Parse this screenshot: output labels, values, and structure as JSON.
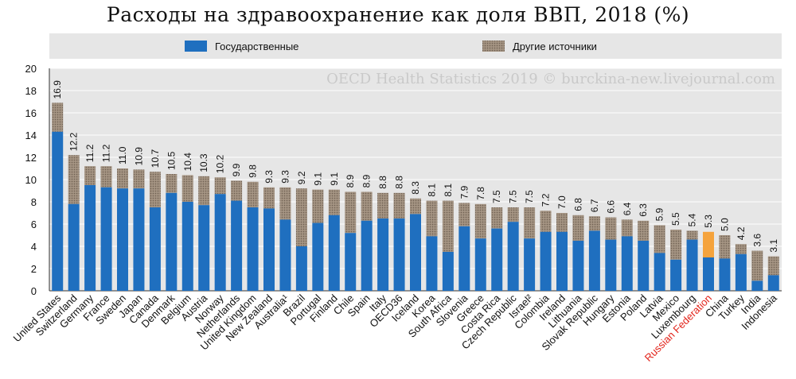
{
  "title": "Расходы на здравоохранение как доля ВВП, 2018 (%)",
  "watermark": "OECD Health Statistics 2019 © burckina-new.livejournal.com",
  "colors": {
    "government": "#1f6fbf",
    "other": "#998877",
    "highlight": "#f5a33c",
    "highlight_label": "#e2231a",
    "legend_bg": "#e6e6e6"
  },
  "chart_data": {
    "type": "bar",
    "stacked": true,
    "title": "Расходы на здравоохранение как доля ВВП, 2018 (%)",
    "xlabel": "",
    "ylabel": "",
    "ylim": [
      0,
      20
    ],
    "yticks": [
      0,
      2,
      4,
      6,
      8,
      10,
      12,
      14,
      16,
      18,
      20
    ],
    "grid": true,
    "legend_position": "top",
    "highlight_category": "Russian Federation",
    "categories": [
      "United States",
      "Switzerland",
      "Germany",
      "France",
      "Sweden",
      "Japan",
      "Canada",
      "Denmark",
      "Belgium",
      "Austria",
      "Norway",
      "Netherlands",
      "United Kingdom",
      "New Zealand",
      "Australia¹",
      "Brazil",
      "Portugal",
      "Finland",
      "Chile",
      "Spain",
      "Italy",
      "OECD36",
      "Iceland",
      "Korea",
      "South Africa",
      "Slovenia",
      "Greece",
      "Costa Rica",
      "Czech Republic",
      "Israel²",
      "Colombia",
      "Ireland",
      "Lithuania",
      "Slovak Republic",
      "Hungary",
      "Estonia",
      "Poland",
      "Latvia",
      "Mexico",
      "Luxembourg",
      "Russian Federation",
      "China",
      "Turkey",
      "India",
      "Indonesia"
    ],
    "totals": [
      16.9,
      12.2,
      11.2,
      11.2,
      11.0,
      10.9,
      10.7,
      10.5,
      10.4,
      10.3,
      10.2,
      9.9,
      9.8,
      9.3,
      9.3,
      9.2,
      9.1,
      9.1,
      8.9,
      8.9,
      8.8,
      8.8,
      8.3,
      8.1,
      8.1,
      7.9,
      7.8,
      7.5,
      7.5,
      7.5,
      7.2,
      7.0,
      6.8,
      6.7,
      6.6,
      6.4,
      6.3,
      5.9,
      5.5,
      5.4,
      5.3,
      5.0,
      4.2,
      3.6,
      3.1
    ],
    "series": [
      {
        "name": "Государственные",
        "values": [
          14.3,
          7.8,
          9.5,
          9.3,
          9.2,
          9.2,
          7.5,
          8.8,
          8.0,
          7.7,
          8.7,
          8.1,
          7.5,
          7.4,
          6.4,
          4.0,
          6.1,
          6.8,
          5.2,
          6.3,
          6.5,
          6.5,
          6.9,
          4.9,
          3.5,
          5.8,
          4.7,
          5.6,
          6.2,
          4.7,
          5.3,
          5.3,
          4.5,
          5.4,
          4.6,
          4.9,
          4.5,
          3.4,
          2.8,
          4.6,
          3.0,
          2.9,
          3.3,
          0.9,
          1.4
        ]
      },
      {
        "name": "Другие источники",
        "values": [
          2.6,
          4.4,
          1.7,
          1.9,
          1.8,
          1.7,
          3.2,
          1.7,
          2.4,
          2.6,
          1.5,
          1.8,
          2.3,
          1.9,
          2.9,
          5.2,
          3.0,
          2.3,
          3.7,
          2.6,
          2.3,
          2.3,
          1.4,
          3.2,
          4.6,
          2.1,
          3.1,
          1.9,
          1.3,
          2.8,
          1.9,
          1.7,
          2.3,
          1.3,
          2.0,
          1.5,
          1.8,
          2.5,
          2.7,
          0.8,
          2.3,
          2.1,
          0.9,
          2.7,
          1.7
        ]
      }
    ]
  }
}
